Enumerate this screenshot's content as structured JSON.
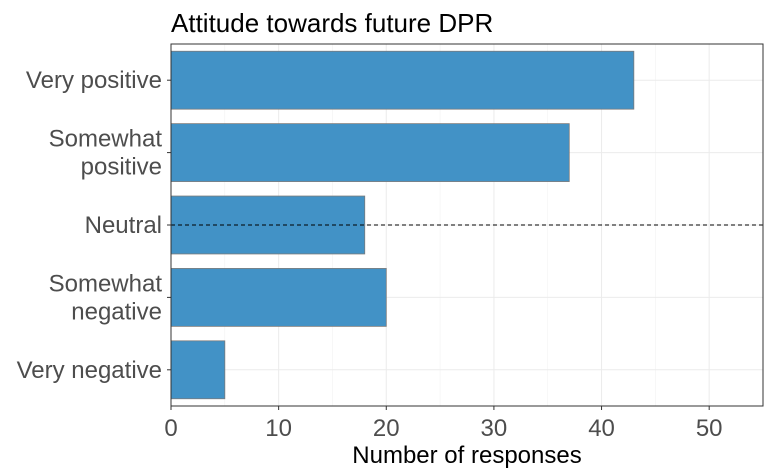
{
  "chart_data": {
    "type": "bar",
    "orientation": "horizontal",
    "title": "Attitude towards future DPR",
    "xlabel": "Number of responses",
    "ylabel": "",
    "categories": [
      [
        "Very positive"
      ],
      [
        "Somewhat",
        "positive"
      ],
      [
        "Neutral"
      ],
      [
        "Somewhat",
        "negative"
      ],
      [
        "Very negative"
      ]
    ],
    "values": [
      43,
      37,
      18,
      20,
      5
    ],
    "xlim": [
      0,
      55
    ],
    "xticks": [
      0,
      10,
      20,
      30,
      40,
      50
    ],
    "grid": true,
    "bar_color": "#4292c6",
    "reference_line": {
      "category": "Neutral",
      "style": "dashed"
    }
  }
}
